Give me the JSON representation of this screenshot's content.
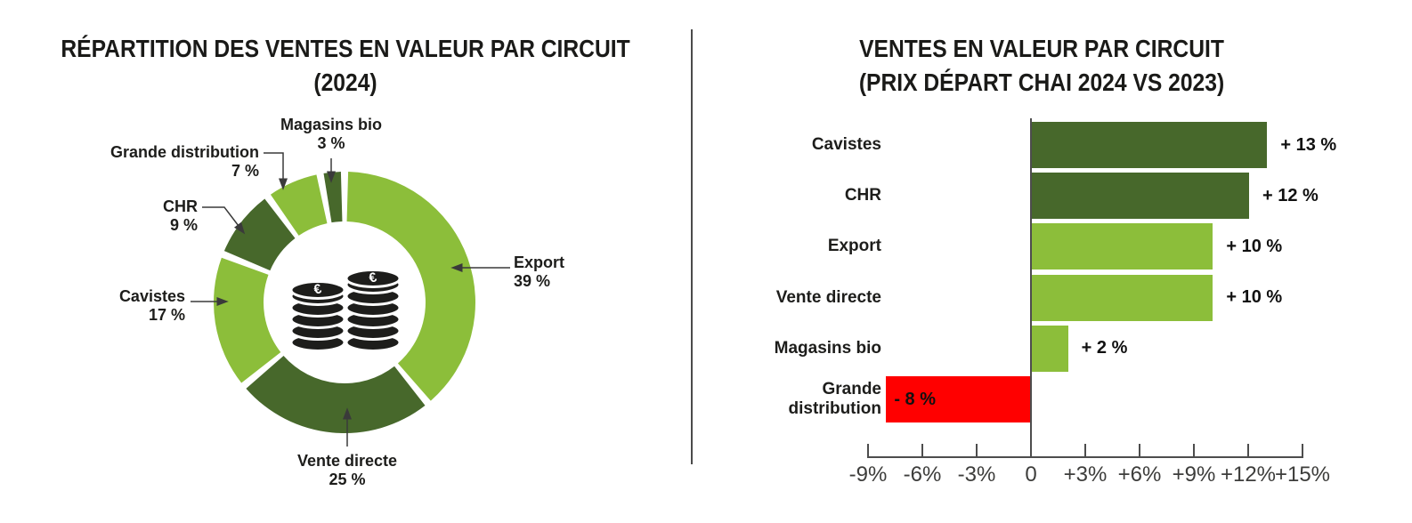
{
  "page": {
    "background": "#FFFFFF"
  },
  "colors": {
    "light_green": "#8CBE3A",
    "dark_green": "#47682B",
    "red": "#FF0000",
    "text": "#1D1D1B",
    "axis_gray": "#4D4D4D"
  },
  "left_chart": {
    "title_line1": "RÉPARTITION DES VENTES EN VALEUR PAR CIRCUIT",
    "title_line2": "(2024)"
  },
  "right_chart": {
    "title_line1": "VENTES EN VALEUR PAR CIRCUIT",
    "title_line2": "(PRIX DÉPART CHAI 2024 VS 2023)"
  },
  "chart_data": [
    {
      "type": "pie",
      "subtype": "donut",
      "title": "RÉPARTITION DES VENTES EN VALEUR PAR CIRCUIT (2024)",
      "unit": "%",
      "center_icon": "euro-coins",
      "segments": [
        {
          "label": "Export",
          "value": 39,
          "pct_label": "39 %",
          "color": "#8CBE3A"
        },
        {
          "label": "Vente directe",
          "value": 25,
          "pct_label": "25 %",
          "color": "#47682B"
        },
        {
          "label": "Cavistes",
          "value": 17,
          "pct_label": "17 %",
          "color": "#8CBE3A"
        },
        {
          "label": "CHR",
          "value": 9,
          "pct_label": "9 %",
          "color": "#47682B"
        },
        {
          "label": "Grande distribution",
          "value": 7,
          "pct_label": "7 %",
          "color": "#8CBE3A"
        },
        {
          "label": "Magasins bio",
          "value": 3,
          "pct_label": "3 %",
          "color": "#47682B"
        }
      ]
    },
    {
      "type": "bar",
      "orientation": "horizontal",
      "title": "VENTES EN VALEUR PAR CIRCUIT (PRIX DÉPART CHAI 2024 VS 2023)",
      "categories": [
        "Cavistes",
        "CHR",
        "Export",
        "Vente directe",
        "Magasins bio",
        "Grande distribution"
      ],
      "values": [
        13,
        12,
        10,
        10,
        2,
        -8
      ],
      "value_labels": [
        "+ 13 %",
        "+ 12 %",
        "+ 10 %",
        "+ 10 %",
        "+ 2 %",
        "- 8 %"
      ],
      "bar_colors": [
        "#47682B",
        "#47682B",
        "#8CBE3A",
        "#8CBE3A",
        "#8CBE3A",
        "#FF0000"
      ],
      "xlim": [
        -9,
        15
      ],
      "x_ticks": [
        -9,
        -6,
        -3,
        0,
        3,
        6,
        9,
        12,
        15
      ],
      "x_tick_labels": [
        "-9%",
        "-6%",
        "-3%",
        "0",
        "+3%",
        "+6%",
        "+9%",
        "+12%",
        "+15%"
      ],
      "grid": false,
      "legend": "none"
    }
  ]
}
